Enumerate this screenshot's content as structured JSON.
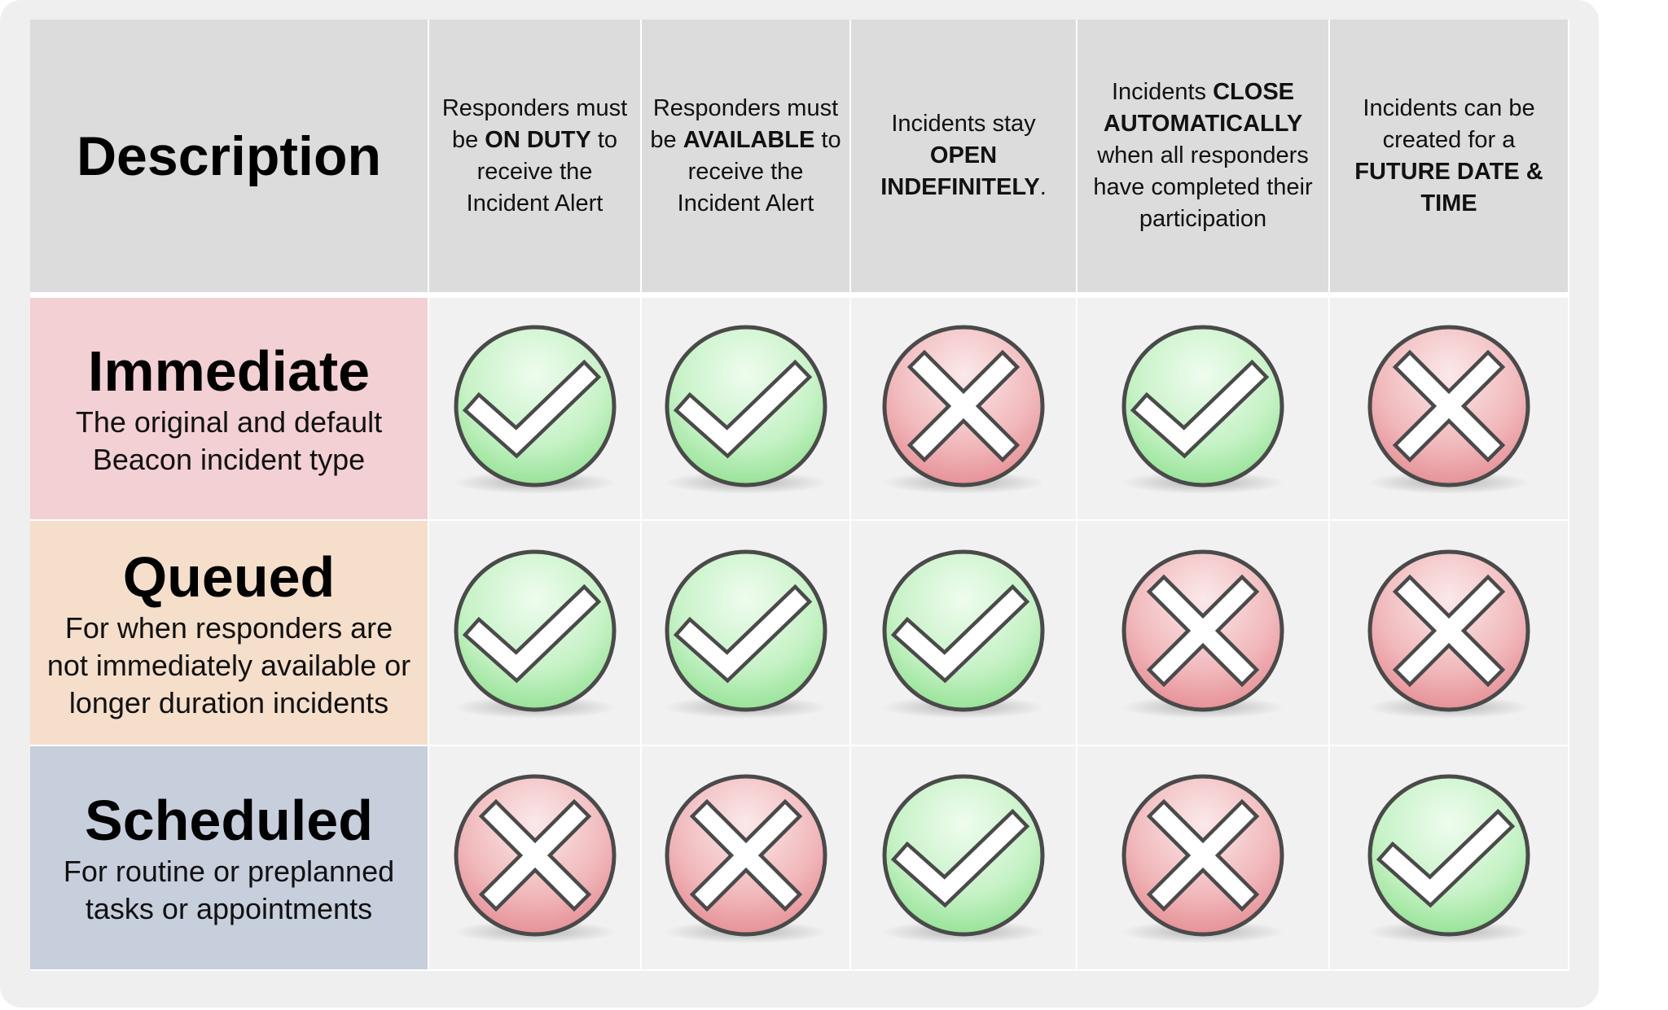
{
  "header": {
    "title": "Description",
    "columns": [
      [
        {
          "text": "Responders must be ",
          "bold": false
        },
        {
          "text": "ON DUTY",
          "bold": true
        },
        {
          "text": " to receive the Incident Alert",
          "bold": false
        }
      ],
      [
        {
          "text": "Responders must be ",
          "bold": false
        },
        {
          "text": "AVAILABLE",
          "bold": true
        },
        {
          "text": " to receive the Incident Alert",
          "bold": false
        }
      ],
      [
        {
          "text": "Incidents stay ",
          "bold": false
        },
        {
          "text": "OPEN INDEFINITELY",
          "bold": true
        },
        {
          "text": ".",
          "bold": false
        }
      ],
      [
        {
          "text": "Incidents ",
          "bold": false
        },
        {
          "text": "CLOSE AUTOMATICALLY",
          "bold": true
        },
        {
          "text": " when all responders have completed their participation",
          "bold": false
        }
      ],
      [
        {
          "text": "Incidents can be created for a ",
          "bold": false
        },
        {
          "text": "FUTURE DATE & TIME",
          "bold": true
        }
      ]
    ]
  },
  "rows": [
    {
      "title": "Immediate",
      "subtitle": "The original and default Beacon incident type",
      "cells": [
        true,
        true,
        false,
        true,
        false
      ]
    },
    {
      "title": "Queued",
      "subtitle": "For when responders are not immediately available or longer duration incidents",
      "cells": [
        true,
        true,
        true,
        false,
        false
      ]
    },
    {
      "title": "Scheduled",
      "subtitle": "For routine or preplanned tasks or appointments",
      "cells": [
        false,
        false,
        true,
        false,
        true
      ]
    }
  ]
}
